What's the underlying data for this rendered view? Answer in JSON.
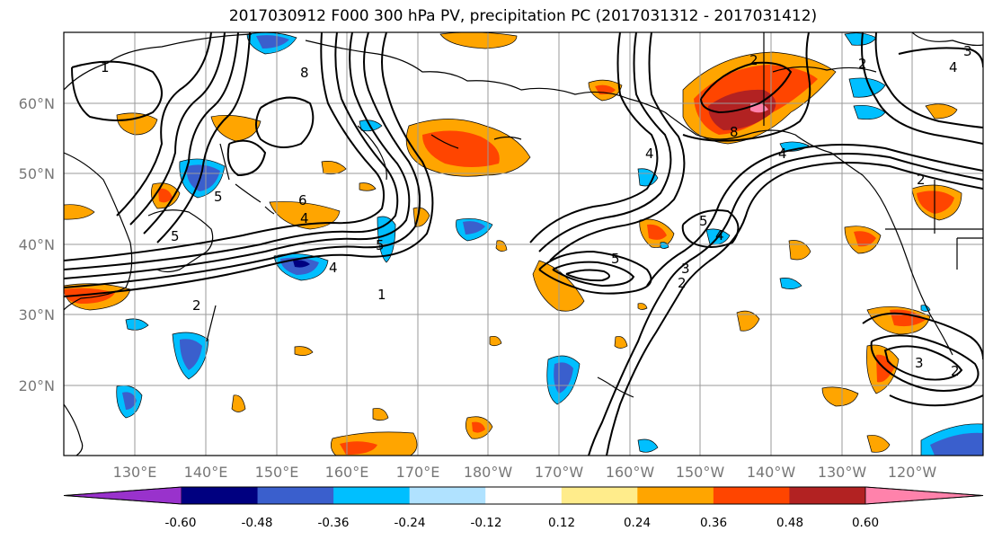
{
  "title": "2017030912 F000 300 hPa PV, precipitation PC (2017031312 - 2017031412)",
  "lat_labels": [
    "60°N",
    "50°N",
    "40°N",
    "30°N",
    "20°N"
  ],
  "lon_labels": [
    "130°E",
    "140°E",
    "150°E",
    "160°E",
    "170°E",
    "180°W",
    "170°W",
    "160°W",
    "150°W",
    "140°W",
    "130°W",
    "120°W"
  ],
  "contour_labels": [
    "1",
    "8",
    "5",
    "6",
    "4",
    "5",
    "4",
    "1",
    "2",
    "4",
    "2",
    "5",
    "5",
    "3",
    "2",
    "4",
    "8",
    "2",
    "4",
    "3",
    "2",
    "4",
    "3",
    "2",
    "5"
  ],
  "colorbar": {
    "tick_labels": [
      "-0.60",
      "-0.48",
      "-0.36",
      "-0.24",
      "-0.12",
      "0.12",
      "0.24",
      "0.36",
      "0.48",
      "0.60"
    ],
    "colors": [
      "#9932cc",
      "#000080",
      "#3a5fcd",
      "#00bfff",
      "#b0e2ff",
      "#ffffff",
      "#ffec8b",
      "#ffa500",
      "#ff4500",
      "#b22222",
      "#ff82ab"
    ]
  }
}
